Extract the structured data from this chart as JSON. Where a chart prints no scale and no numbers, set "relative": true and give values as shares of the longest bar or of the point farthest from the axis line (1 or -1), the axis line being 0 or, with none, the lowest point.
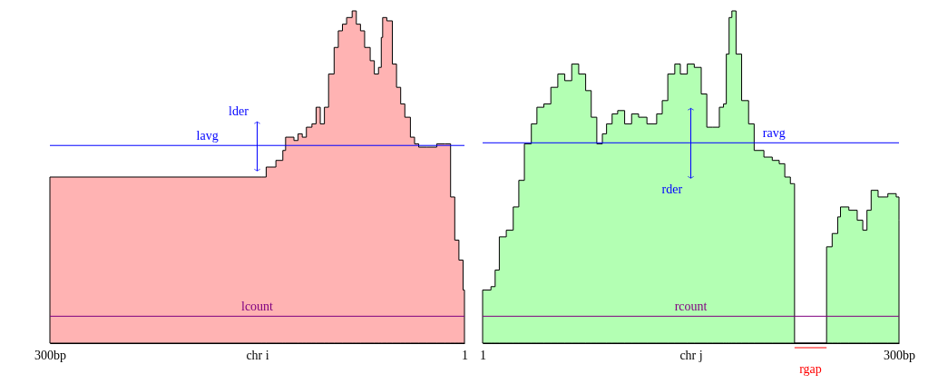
{
  "chart_data": [
    {
      "type": "area",
      "relative": true,
      "xlabel": "chr i",
      "xlim": [
        300,
        1
      ],
      "xticks": [
        {
          "value": 300,
          "label": "300bp"
        },
        1
      ],
      "tick_labels": "x",
      "x": [
        300,
        147,
        144,
        137,
        132,
        130,
        124,
        121,
        118,
        115,
        111,
        108,
        105,
        102,
        99,
        95,
        92,
        89,
        86,
        82,
        79,
        76,
        73,
        69,
        66,
        63,
        61,
        60,
        57,
        53,
        50,
        47,
        44,
        40,
        37,
        34,
        28,
        21,
        15,
        11,
        8,
        5,
        2,
        1
      ],
      "series": [
        {
          "color": "#ffb3b3",
          "values": [
            0.5,
            0.5,
            0.53,
            0.55,
            0.58,
            0.62,
            0.61,
            0.63,
            0.62,
            0.65,
            0.66,
            0.71,
            0.66,
            0.71,
            0.81,
            0.89,
            0.94,
            0.96,
            0.98,
            1.0,
            0.96,
            0.94,
            0.89,
            0.85,
            0.81,
            0.83,
            0.92,
            0.98,
            0.97,
            0.84,
            0.77,
            0.72,
            0.68,
            0.62,
            0.6,
            0.59,
            0.59,
            0.6,
            0.6,
            0.44,
            0.31,
            0.25,
            0.16,
            0.16
          ]
        }
      ],
      "ref_lines": [
        {
          "axis": "y",
          "value": 0.595,
          "label": "lavg",
          "color": "#0000ff"
        },
        {
          "axis": "y",
          "value": 0.081,
          "label": "lcount",
          "color": "#800080"
        }
      ],
      "annotations": [
        "lder"
      ]
    },
    {
      "type": "area",
      "relative": true,
      "xlabel": "chr j",
      "xlim": [
        1,
        300
      ],
      "xticks": [
        1,
        {
          "value": 300,
          "label": "300bp"
        }
      ],
      "tick_labels": "x",
      "x": [
        1,
        7,
        10,
        13,
        18,
        23,
        27,
        31,
        36,
        40,
        45,
        50,
        55,
        60,
        65,
        70,
        75,
        79,
        83,
        87,
        90,
        94,
        98,
        103,
        108,
        113,
        119,
        126,
        130,
        134,
        139,
        143,
        148,
        153,
        158,
        162,
        166,
        171,
        174,
        176,
        178,
        180,
        183,
        187,
        192,
        196,
        203,
        209,
        214,
        218,
        222,
        224,
        225,
        248,
        252,
        256,
        258,
        264,
        270,
        274,
        277,
        280,
        285,
        292,
        298,
        300
      ],
      "series": [
        {
          "color": "#b3ffb3",
          "values": [
            0.16,
            0.17,
            0.22,
            0.32,
            0.34,
            0.41,
            0.49,
            0.6,
            0.66,
            0.71,
            0.72,
            0.77,
            0.81,
            0.79,
            0.84,
            0.81,
            0.76,
            0.68,
            0.6,
            0.63,
            0.66,
            0.69,
            0.7,
            0.66,
            0.69,
            0.68,
            0.66,
            0.69,
            0.73,
            0.81,
            0.84,
            0.81,
            0.84,
            0.83,
            0.75,
            0.65,
            0.65,
            0.71,
            0.72,
            0.87,
            0.98,
            1.0,
            0.87,
            0.73,
            0.66,
            0.58,
            0.56,
            0.55,
            0.54,
            0.5,
            0.48,
            0.48,
            0,
            0.29,
            0.33,
            0.38,
            0.41,
            0.4,
            0.37,
            0.34,
            0.4,
            0.46,
            0.44,
            0.45,
            0.44,
            0.37
          ]
        }
      ],
      "ref_lines": [
        {
          "axis": "y",
          "value": 0.603,
          "label": "ravg",
          "color": "#0000ff"
        },
        {
          "axis": "y",
          "value": 0.081,
          "label": "rcount",
          "color": "#800080"
        }
      ],
      "annotations": [
        "rder",
        "rgap"
      ]
    }
  ]
}
